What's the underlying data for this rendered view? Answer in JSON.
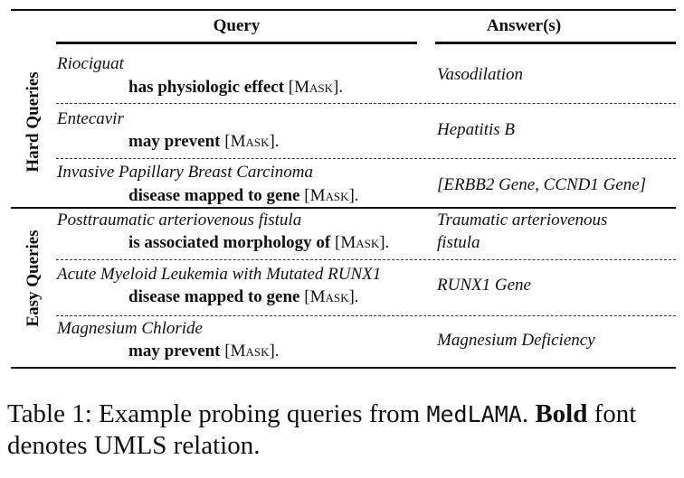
{
  "table": {
    "headers": {
      "query": "Query",
      "answers": "Answer(s)"
    },
    "groups": [
      {
        "label": "Hard Queries"
      },
      {
        "label": "Easy Queries"
      }
    ],
    "mask_token": "Mask",
    "rows": [
      {
        "subject": "Riociguat",
        "relation": "has physiologic effect",
        "answer": "Vasodilation"
      },
      {
        "subject": "Entecavir",
        "relation": "may prevent",
        "answer": "Hepatitis B"
      },
      {
        "subject": "Invasive Papillary Breast Carcinoma",
        "relation": "disease mapped to gene",
        "answer": "[ERBB2 Gene, CCND1 Gene]"
      },
      {
        "subject": "Posttraumatic arteriovenous fistula",
        "relation": "is associated morphology of",
        "answer_line1": "Traumatic arteriovenous",
        "answer_line2": "fistula"
      },
      {
        "subject": "Acute Myeloid Leukemia with Mutated RUNX1",
        "relation": "disease mapped to gene",
        "answer": "RUNX1 Gene"
      },
      {
        "subject": "Magnesium Chloride",
        "relation": "may prevent",
        "answer": "Magnesium Deficiency"
      }
    ]
  },
  "caption": {
    "prefix": "Table 1: Example probing queries from ",
    "dataset": "MedLAMA",
    "middle": ". ",
    "bold": "Bold",
    "suffix": " font denotes UMLS relation."
  }
}
